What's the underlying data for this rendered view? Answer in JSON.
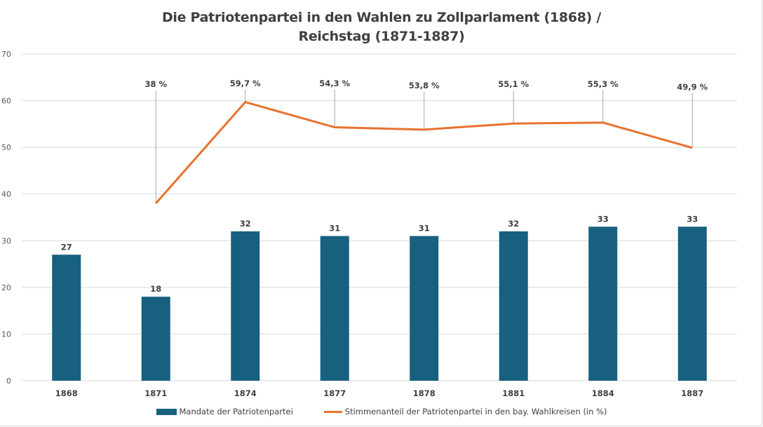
{
  "chart_data": {
    "type": "bar+line",
    "title_line1": "Die Patriotenpartei in den Wahlen zu Zollparlament (1868) /",
    "title_line2": "Reichstag (1871-1887)",
    "categories": [
      "1868",
      "1871",
      "1874",
      "1877",
      "1878",
      "1881",
      "1884",
      "1887"
    ],
    "ylim": [
      0,
      70
    ],
    "yticks": [
      0,
      10,
      20,
      30,
      40,
      50,
      60,
      70
    ],
    "grid": true,
    "legend_position": "bottom",
    "series": [
      {
        "name": "Mandate der Patriotenpartei",
        "type": "bar",
        "color": "#17607f",
        "values": [
          27,
          18,
          32,
          31,
          31,
          32,
          33,
          33
        ],
        "labels": [
          "27",
          "18",
          "32",
          "31",
          "31",
          "32",
          "33",
          "33"
        ]
      },
      {
        "name": "Stimmenanteil der Patriotenpartei in den bay. Wahlkreisen (in %)",
        "type": "line",
        "color": "#e8722e",
        "values": [
          null,
          38,
          59.7,
          54.3,
          53.8,
          55.1,
          55.3,
          49.9
        ],
        "labels": [
          null,
          "38 %",
          "59,7 %",
          "54,3 %",
          "53,8 %",
          "55,1 %",
          "55,3 %",
          "49,9 %"
        ]
      }
    ]
  }
}
